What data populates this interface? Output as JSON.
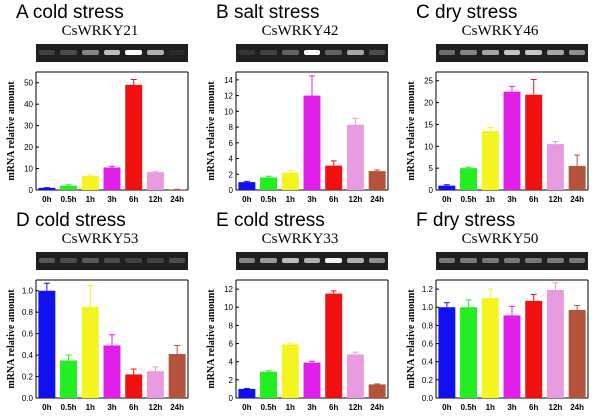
{
  "chart_data": [
    {
      "type": "bar",
      "panel_label": "A cold stress",
      "gene": "CsWRKY21",
      "categories": [
        "0h",
        "0.5h",
        "1h",
        "3h",
        "6h",
        "12h",
        "24h"
      ],
      "values": [
        1,
        2,
        6.5,
        10.5,
        49,
        8.3,
        0.2
      ],
      "errors": [
        0.1,
        0.4,
        0.5,
        0.6,
        2.5,
        0.4,
        0.1
      ],
      "ylabel": "mRNA relative amount",
      "ylim": [
        0,
        55
      ],
      "yticks": [
        "0",
        "10",
        "20",
        "30",
        "40",
        "50"
      ],
      "gel_bands": [
        0.15,
        0.2,
        0.45,
        0.7,
        1.0,
        0.65,
        0.05
      ]
    },
    {
      "type": "bar",
      "panel_label": "B salt stress",
      "gene": "CsWRKY42",
      "categories": [
        "0h",
        "0.5h",
        "1h",
        "3h",
        "6h",
        "12h",
        "24h"
      ],
      "values": [
        1,
        1.6,
        2.2,
        12,
        3.1,
        8.3,
        2.4
      ],
      "errors": [
        0.1,
        0.15,
        0.3,
        2.5,
        0.6,
        0.8,
        0.15
      ],
      "ylabel": "mRNA relative amount",
      "ylim": [
        0,
        15
      ],
      "yticks": [
        "0",
        "2",
        "4",
        "6",
        "8",
        "10",
        "12",
        "14"
      ],
      "gel_bands": [
        0.1,
        0.15,
        0.3,
        1.0,
        0.3,
        0.6,
        0.2
      ]
    },
    {
      "type": "bar",
      "panel_label": "C dry stress",
      "gene": "CsWRKY46",
      "categories": [
        "0h",
        "0.5h",
        "1h",
        "3h",
        "6h",
        "12h",
        "24h"
      ],
      "values": [
        1,
        5,
        13.5,
        22.5,
        21.8,
        10.5,
        5.5
      ],
      "errors": [
        0.2,
        0.2,
        0.8,
        1.2,
        3.5,
        0.6,
        2.5
      ],
      "ylabel": "mRNA relative amount",
      "ylim": [
        0,
        27
      ],
      "yticks": [
        "0",
        "5",
        "10",
        "15",
        "20",
        "25"
      ],
      "gel_bands": [
        0.35,
        0.45,
        0.6,
        0.75,
        0.75,
        0.6,
        0.5
      ]
    },
    {
      "type": "bar",
      "panel_label": "D cold stress",
      "gene": "CsWRKY53",
      "categories": [
        "0h",
        "0.5h",
        "1h",
        "3h",
        "6h",
        "12h",
        "24h"
      ],
      "values": [
        1.0,
        0.35,
        0.85,
        0.49,
        0.22,
        0.25,
        0.41
      ],
      "errors": [
        0.07,
        0.05,
        0.2,
        0.1,
        0.05,
        0.04,
        0.08
      ],
      "ylabel": "mRNA relative amount",
      "ylim": [
        0,
        1.1
      ],
      "yticks": [
        "0.0",
        "0.2",
        "0.4",
        "0.6",
        "0.8",
        "1.0"
      ],
      "gel_bands": [
        0.25,
        0.2,
        0.25,
        0.2,
        0.15,
        0.15,
        0.2
      ]
    },
    {
      "type": "bar",
      "panel_label": "E cold stress",
      "gene": "CsWRKY33",
      "categories": [
        "0h",
        "0.5h",
        "1h",
        "3h",
        "6h",
        "12h",
        "24h"
      ],
      "values": [
        1,
        2.9,
        5.9,
        3.9,
        11.5,
        4.8,
        1.5
      ],
      "errors": [
        0.05,
        0.1,
        0.15,
        0.15,
        0.3,
        0.25,
        0.05
      ],
      "ylabel": "mRNA relative amount",
      "ylim": [
        0,
        13
      ],
      "yticks": [
        "0",
        "2",
        "4",
        "6",
        "8",
        "10",
        "12"
      ],
      "gel_bands": [
        0.45,
        0.55,
        0.7,
        0.65,
        0.95,
        0.65,
        0.5
      ]
    },
    {
      "type": "bar",
      "panel_label": "F dry stress",
      "gene": "CsWRKY50",
      "categories": [
        "0h",
        "0.5h",
        "1h",
        "3h",
        "6h",
        "12h",
        "24h"
      ],
      "values": [
        1.0,
        1.0,
        1.1,
        0.91,
        1.07,
        1.19,
        0.97
      ],
      "errors": [
        0.05,
        0.08,
        0.1,
        0.1,
        0.07,
        0.08,
        0.05
      ],
      "ylabel": "mRNA relative amount",
      "ylim": [
        0,
        1.3
      ],
      "yticks": [
        "0.0",
        "0.2",
        "0.4",
        "0.6",
        "0.8",
        "1.0",
        "1.2"
      ],
      "gel_bands": [
        0.4,
        0.4,
        0.4,
        0.4,
        0.4,
        0.4,
        0.4
      ]
    }
  ],
  "colors": {
    "bars": [
      "#1010f0",
      "#22ee22",
      "#f4f420",
      "#e020e8",
      "#f01010",
      "#e89be0",
      "#b5543c"
    ],
    "gel_bg": "#1f1f1f",
    "band": "#ffffff"
  }
}
